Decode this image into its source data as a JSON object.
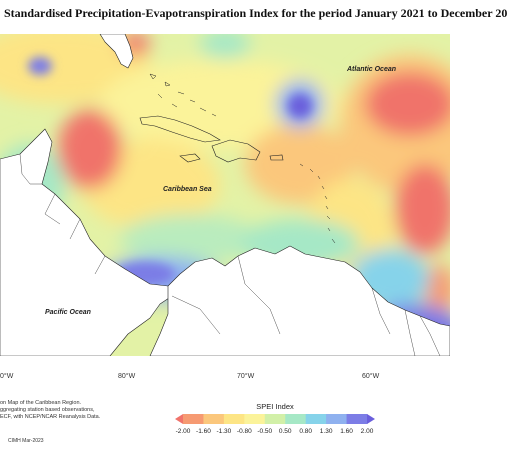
{
  "title": "Standardised Precipitation-Evapotranspiration Index for the period January 2021 to December 20",
  "labels": {
    "atlantic": "Atlantic Ocean",
    "caribbean": "Caribbean Sea",
    "pacific": "Pacific Ocean"
  },
  "longitudes": [
    "0°W",
    "80°W",
    "70°W",
    "60°W"
  ],
  "notes": [
    "on Map of the Caribbean Region.",
    "ggregating station based observations,",
    "ECF, with NCEP/NCAR Reanalysis Data."
  ],
  "credit": "CIMH Mar-2023",
  "legend": {
    "title": "SPEI Index",
    "ticks": [
      "-2.00",
      "-1.60",
      "-1.30",
      "-0.80",
      "-0.50",
      "0.50",
      "0.80",
      "1.30",
      "1.60",
      "2.00"
    ],
    "colors": [
      "#f0736b",
      "#f69a72",
      "#fbc77c",
      "#fde585",
      "#fbf39a",
      "#d2f0a8",
      "#a6e8c6",
      "#86d3ea",
      "#8fb1ef",
      "#7c7de6",
      "#6a5fdc"
    ]
  },
  "colors": {
    "dry_strong": "#f0736b",
    "dry": "#fbc77c",
    "neutral": "#d9f0a8",
    "wet": "#86d3ea",
    "wet_strong": "#7a6fe0",
    "land": "#ffffff"
  }
}
